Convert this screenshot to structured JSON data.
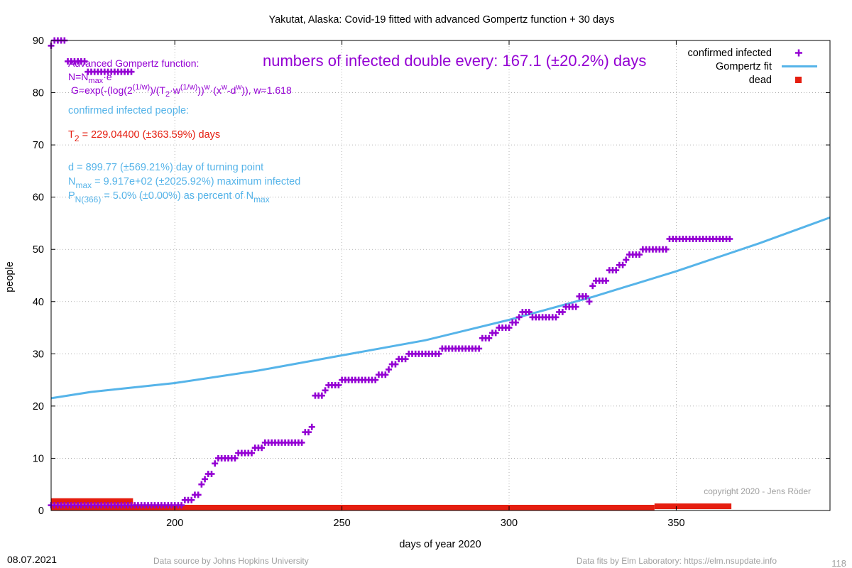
{
  "chart_data": {
    "type": "scatter",
    "title": "Yakutat,  Alaska: Covid-19 fitted with advanced Gompertz function + 30 days",
    "xlabel": "days of year 2020",
    "ylabel": "people",
    "xlim": [
      163,
      396
    ],
    "ylim": [
      0,
      90
    ],
    "x_ticks": [
      200,
      250,
      300,
      350
    ],
    "y_ticks": [
      0,
      10,
      20,
      30,
      40,
      50,
      60,
      70,
      80,
      90
    ],
    "grid": true,
    "legend_position": "top-right",
    "legend": [
      {
        "label": "confirmed infected",
        "color": "#9400d3",
        "marker": "plus"
      },
      {
        "label": "Gompertz fit",
        "color": "#56b4e9",
        "marker": "line"
      },
      {
        "label": "dead",
        "color": "#e51e10",
        "marker": "square"
      }
    ],
    "series": [
      {
        "name": "confirmed infected",
        "color": "#9400d3",
        "points": [
          [
            163,
            89
          ],
          [
            164,
            90
          ],
          [
            165,
            90
          ],
          [
            166,
            90
          ],
          [
            167,
            90
          ],
          [
            168,
            86
          ],
          [
            169,
            86
          ],
          [
            170,
            86
          ],
          [
            171,
            86
          ],
          [
            172,
            86
          ],
          [
            173,
            86
          ],
          [
            174,
            84
          ],
          [
            175,
            84
          ],
          [
            176,
            84
          ],
          [
            177,
            84
          ],
          [
            178,
            84
          ],
          [
            179,
            84
          ],
          [
            180,
            84
          ],
          [
            181,
            84
          ],
          [
            182,
            84
          ],
          [
            183,
            84
          ],
          [
            184,
            84
          ],
          [
            185,
            84
          ],
          [
            186,
            84
          ],
          [
            187,
            84
          ],
          [
            163,
            1
          ],
          [
            164,
            1
          ],
          [
            165,
            1
          ],
          [
            166,
            1
          ],
          [
            167,
            1
          ],
          [
            168,
            1
          ],
          [
            169,
            1
          ],
          [
            170,
            1
          ],
          [
            171,
            1
          ],
          [
            172,
            1
          ],
          [
            173,
            1
          ],
          [
            174,
            1
          ],
          [
            175,
            1
          ],
          [
            176,
            1
          ],
          [
            177,
            1
          ],
          [
            178,
            1
          ],
          [
            179,
            1
          ],
          [
            180,
            1
          ],
          [
            181,
            1
          ],
          [
            182,
            1
          ],
          [
            183,
            1
          ],
          [
            184,
            1
          ],
          [
            185,
            1
          ],
          [
            186,
            1
          ],
          [
            187,
            1
          ],
          [
            188,
            1
          ],
          [
            189,
            1
          ],
          [
            190,
            1
          ],
          [
            191,
            1
          ],
          [
            192,
            1
          ],
          [
            193,
            1
          ],
          [
            194,
            1
          ],
          [
            195,
            1
          ],
          [
            196,
            1
          ],
          [
            197,
            1
          ],
          [
            198,
            1
          ],
          [
            199,
            1
          ],
          [
            200,
            1
          ],
          [
            201,
            1
          ],
          [
            202,
            1
          ],
          [
            203,
            2
          ],
          [
            204,
            2
          ],
          [
            205,
            2
          ],
          [
            206,
            3
          ],
          [
            207,
            3
          ],
          [
            208,
            5
          ],
          [
            209,
            6
          ],
          [
            210,
            7
          ],
          [
            211,
            7
          ],
          [
            212,
            9
          ],
          [
            213,
            10
          ],
          [
            214,
            10
          ],
          [
            215,
            10
          ],
          [
            216,
            10
          ],
          [
            217,
            10
          ],
          [
            218,
            10
          ],
          [
            219,
            11
          ],
          [
            220,
            11
          ],
          [
            221,
            11
          ],
          [
            222,
            11
          ],
          [
            223,
            11
          ],
          [
            224,
            12
          ],
          [
            225,
            12
          ],
          [
            226,
            12
          ],
          [
            227,
            13
          ],
          [
            228,
            13
          ],
          [
            229,
            13
          ],
          [
            230,
            13
          ],
          [
            231,
            13
          ],
          [
            232,
            13
          ],
          [
            233,
            13
          ],
          [
            234,
            13
          ],
          [
            235,
            13
          ],
          [
            236,
            13
          ],
          [
            237,
            13
          ],
          [
            238,
            13
          ],
          [
            239,
            15
          ],
          [
            240,
            15
          ],
          [
            241,
            16
          ],
          [
            242,
            22
          ],
          [
            243,
            22
          ],
          [
            244,
            22
          ],
          [
            245,
            23
          ],
          [
            246,
            24
          ],
          [
            247,
            24
          ],
          [
            248,
            24
          ],
          [
            249,
            24
          ],
          [
            250,
            25
          ],
          [
            251,
            25
          ],
          [
            252,
            25
          ],
          [
            253,
            25
          ],
          [
            254,
            25
          ],
          [
            255,
            25
          ],
          [
            256,
            25
          ],
          [
            257,
            25
          ],
          [
            258,
            25
          ],
          [
            259,
            25
          ],
          [
            260,
            25
          ],
          [
            261,
            26
          ],
          [
            262,
            26
          ],
          [
            263,
            26
          ],
          [
            264,
            27
          ],
          [
            265,
            28
          ],
          [
            266,
            28
          ],
          [
            267,
            29
          ],
          [
            268,
            29
          ],
          [
            269,
            29
          ],
          [
            270,
            30
          ],
          [
            271,
            30
          ],
          [
            272,
            30
          ],
          [
            273,
            30
          ],
          [
            274,
            30
          ],
          [
            275,
            30
          ],
          [
            276,
            30
          ],
          [
            277,
            30
          ],
          [
            278,
            30
          ],
          [
            279,
            30
          ],
          [
            280,
            31
          ],
          [
            281,
            31
          ],
          [
            282,
            31
          ],
          [
            283,
            31
          ],
          [
            284,
            31
          ],
          [
            285,
            31
          ],
          [
            286,
            31
          ],
          [
            287,
            31
          ],
          [
            288,
            31
          ],
          [
            289,
            31
          ],
          [
            290,
            31
          ],
          [
            291,
            31
          ],
          [
            292,
            33
          ],
          [
            293,
            33
          ],
          [
            294,
            33
          ],
          [
            295,
            34
          ],
          [
            296,
            34
          ],
          [
            297,
            35
          ],
          [
            298,
            35
          ],
          [
            299,
            35
          ],
          [
            300,
            35
          ],
          [
            301,
            36
          ],
          [
            302,
            36
          ],
          [
            303,
            37
          ],
          [
            304,
            38
          ],
          [
            305,
            38
          ],
          [
            306,
            38
          ],
          [
            307,
            37
          ],
          [
            308,
            37
          ],
          [
            309,
            37
          ],
          [
            310,
            37
          ],
          [
            311,
            37
          ],
          [
            312,
            37
          ],
          [
            313,
            37
          ],
          [
            314,
            37
          ],
          [
            315,
            38
          ],
          [
            316,
            38
          ],
          [
            317,
            39
          ],
          [
            318,
            39
          ],
          [
            319,
            39
          ],
          [
            320,
            39
          ],
          [
            321,
            41
          ],
          [
            322,
            41
          ],
          [
            323,
            41
          ],
          [
            324,
            40
          ],
          [
            325,
            43
          ],
          [
            326,
            44
          ],
          [
            327,
            44
          ],
          [
            328,
            44
          ],
          [
            329,
            44
          ],
          [
            330,
            46
          ],
          [
            331,
            46
          ],
          [
            332,
            46
          ],
          [
            333,
            47
          ],
          [
            334,
            47
          ],
          [
            335,
            48
          ],
          [
            336,
            49
          ],
          [
            337,
            49
          ],
          [
            338,
            49
          ],
          [
            339,
            49
          ],
          [
            340,
            50
          ],
          [
            341,
            50
          ],
          [
            342,
            50
          ],
          [
            343,
            50
          ],
          [
            344,
            50
          ],
          [
            345,
            50
          ],
          [
            346,
            50
          ],
          [
            347,
            50
          ],
          [
            348,
            52
          ],
          [
            349,
            52
          ],
          [
            350,
            52
          ],
          [
            351,
            52
          ],
          [
            352,
            52
          ],
          [
            353,
            52
          ],
          [
            354,
            52
          ],
          [
            355,
            52
          ],
          [
            356,
            52
          ],
          [
            357,
            52
          ],
          [
            358,
            52
          ],
          [
            359,
            52
          ],
          [
            360,
            52
          ],
          [
            361,
            52
          ],
          [
            362,
            52
          ],
          [
            363,
            52
          ],
          [
            364,
            52
          ],
          [
            365,
            52
          ],
          [
            366,
            52
          ]
        ]
      },
      {
        "name": "Gompertz fit",
        "color": "#56b4e9",
        "points": [
          [
            163,
            21.5
          ],
          [
            175,
            22.7
          ],
          [
            200,
            24.4
          ],
          [
            225,
            26.8
          ],
          [
            250,
            29.7
          ],
          [
            275,
            32.6
          ],
          [
            300,
            36.5
          ],
          [
            325,
            40.9
          ],
          [
            350,
            45.8
          ],
          [
            375,
            51.2
          ],
          [
            396,
            56.1
          ]
        ]
      },
      {
        "name": "dead",
        "color": "#e51e10",
        "bars": [
          {
            "x0": 163,
            "x1": 187.5,
            "y": 1.8
          },
          {
            "x0": 163,
            "x1": 343.5,
            "y": 0
          },
          {
            "x0": 343.5,
            "x1": 366.5,
            "y": 0.8
          }
        ]
      }
    ]
  },
  "annotations": {
    "formula_title": "Advanced Gompertz function:",
    "formula_n": "N=N",
    "formula_n_sub": "max",
    "formula_n_tail": "·e",
    "formula_g": "G=exp(-(log(2",
    "formula_g_sup1": "(1/w)",
    "formula_g_mid": ")/(T",
    "formula_g_sub1": "2",
    "formula_g_mid2": "·w",
    "formula_g_sup2": "(1/w)",
    "formula_g_mid3": "))",
    "formula_g_sup3": "w",
    "formula_g_mid4": "·(x",
    "formula_g_sup4": "w",
    "formula_g_mid5": "-d",
    "formula_g_sup5": "w",
    "formula_g_end": ")), w=1.618",
    "doubling": "numbers of infected double every: 167.1 (±20.2%) days",
    "confirmed_header": "confirmed infected people:",
    "t2_prefix": "T",
    "t2_sub": "2",
    "t2_rest": " = 229.04400 (±363.59%) days",
    "d_line": "d = 899.77 (±569.21%) day of turning point",
    "nmax_prefix": "N",
    "nmax_sub": "max",
    "nmax_rest": " = 9.917e+02 (±2025.92%) maximum infected",
    "p_prefix": "P",
    "p_sub": "N(366)",
    "p_rest": " = 5.0% (±0.00%) as percent of N",
    "p_sub2": "max",
    "copyright": "copyright 2020 - Jens Röder"
  },
  "footer": {
    "date": "08.07.2021",
    "source": "Data source by Johns Hopkins University",
    "fits": "Data fits by Elm Laboratory: https://elm.nsupdate.info",
    "page_number": "118"
  },
  "colors": {
    "infected": "#9400d3",
    "fit": "#56b4e9",
    "dead": "#e51e10",
    "t2": "#e51e10",
    "info": "#56b4e9",
    "grid": "#a0a0a0"
  }
}
